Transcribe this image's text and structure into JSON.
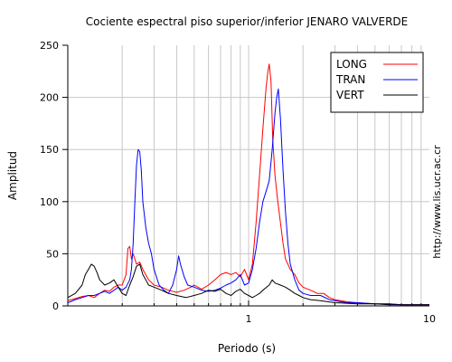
{
  "chart_data": {
    "type": "line",
    "title": "Cociente espectral piso superior/inferior  JENARO VALVERDE",
    "xlabel": "Periodo (s)",
    "ylabel": "Amplitud",
    "credit": "http://www.lis.ucr.ac.cr",
    "x_scale": "log",
    "xlim": [
      0.1,
      10
    ],
    "ylim": [
      0,
      250
    ],
    "grid": true,
    "legend_position": "top-right",
    "x_tick_labels": [
      {
        "value": 1,
        "label": "1"
      },
      {
        "value": 10,
        "label": "10"
      }
    ],
    "y_ticks": [
      0,
      50,
      100,
      150,
      200,
      250
    ],
    "series": [
      {
        "name": "LONG",
        "color": "#ff0000",
        "points": [
          [
            0.1,
            5
          ],
          [
            0.11,
            7
          ],
          [
            0.12,
            9
          ],
          [
            0.13,
            10
          ],
          [
            0.14,
            8
          ],
          [
            0.15,
            12
          ],
          [
            0.16,
            15
          ],
          [
            0.17,
            14
          ],
          [
            0.18,
            18
          ],
          [
            0.19,
            20
          ],
          [
            0.2,
            20
          ],
          [
            0.21,
            30
          ],
          [
            0.215,
            55
          ],
          [
            0.22,
            57
          ],
          [
            0.225,
            45
          ],
          [
            0.23,
            50
          ],
          [
            0.24,
            40
          ],
          [
            0.25,
            42
          ],
          [
            0.26,
            35
          ],
          [
            0.28,
            25
          ],
          [
            0.3,
            20
          ],
          [
            0.33,
            18
          ],
          [
            0.36,
            15
          ],
          [
            0.4,
            13
          ],
          [
            0.44,
            15
          ],
          [
            0.48,
            18
          ],
          [
            0.5,
            20
          ],
          [
            0.55,
            16
          ],
          [
            0.6,
            20
          ],
          [
            0.65,
            25
          ],
          [
            0.7,
            30
          ],
          [
            0.75,
            32
          ],
          [
            0.8,
            30
          ],
          [
            0.85,
            32
          ],
          [
            0.9,
            28
          ],
          [
            0.95,
            35
          ],
          [
            1.0,
            25
          ],
          [
            1.05,
            40
          ],
          [
            1.1,
            80
          ],
          [
            1.15,
            125
          ],
          [
            1.2,
            170
          ],
          [
            1.25,
            210
          ],
          [
            1.28,
            225
          ],
          [
            1.3,
            232
          ],
          [
            1.33,
            215
          ],
          [
            1.36,
            160
          ],
          [
            1.4,
            125
          ],
          [
            1.45,
            100
          ],
          [
            1.5,
            80
          ],
          [
            1.55,
            60
          ],
          [
            1.6,
            45
          ],
          [
            1.7,
            35
          ],
          [
            1.8,
            30
          ],
          [
            1.9,
            22
          ],
          [
            2.0,
            18
          ],
          [
            2.2,
            15
          ],
          [
            2.4,
            12
          ],
          [
            2.6,
            12
          ],
          [
            2.8,
            8
          ],
          [
            3.0,
            6
          ],
          [
            3.5,
            4
          ],
          [
            4.0,
            3
          ],
          [
            5,
            2
          ],
          [
            6,
            2
          ],
          [
            7,
            1
          ],
          [
            8,
            1
          ],
          [
            10,
            1
          ]
        ]
      },
      {
        "name": "TRAN",
        "color": "#0000ff",
        "points": [
          [
            0.1,
            3
          ],
          [
            0.11,
            6
          ],
          [
            0.12,
            8
          ],
          [
            0.13,
            10
          ],
          [
            0.14,
            10
          ],
          [
            0.15,
            12
          ],
          [
            0.16,
            14
          ],
          [
            0.17,
            12
          ],
          [
            0.18,
            15
          ],
          [
            0.19,
            18
          ],
          [
            0.2,
            15
          ],
          [
            0.21,
            18
          ],
          [
            0.22,
            25
          ],
          [
            0.225,
            35
          ],
          [
            0.23,
            60
          ],
          [
            0.235,
            100
          ],
          [
            0.24,
            135
          ],
          [
            0.245,
            150
          ],
          [
            0.25,
            148
          ],
          [
            0.255,
            130
          ],
          [
            0.26,
            100
          ],
          [
            0.27,
            75
          ],
          [
            0.28,
            60
          ],
          [
            0.29,
            50
          ],
          [
            0.3,
            35
          ],
          [
            0.32,
            20
          ],
          [
            0.34,
            15
          ],
          [
            0.36,
            12
          ],
          [
            0.38,
            20
          ],
          [
            0.4,
            35
          ],
          [
            0.41,
            48
          ],
          [
            0.42,
            40
          ],
          [
            0.44,
            28
          ],
          [
            0.46,
            20
          ],
          [
            0.5,
            18
          ],
          [
            0.55,
            15
          ],
          [
            0.6,
            14
          ],
          [
            0.65,
            15
          ],
          [
            0.7,
            17
          ],
          [
            0.75,
            20
          ],
          [
            0.8,
            22
          ],
          [
            0.85,
            25
          ],
          [
            0.9,
            30
          ],
          [
            0.95,
            20
          ],
          [
            1.0,
            22
          ],
          [
            1.05,
            35
          ],
          [
            1.1,
            55
          ],
          [
            1.15,
            80
          ],
          [
            1.2,
            100
          ],
          [
            1.25,
            110
          ],
          [
            1.3,
            120
          ],
          [
            1.35,
            150
          ],
          [
            1.4,
            185
          ],
          [
            1.43,
            200
          ],
          [
            1.46,
            208
          ],
          [
            1.5,
            180
          ],
          [
            1.55,
            130
          ],
          [
            1.6,
            90
          ],
          [
            1.65,
            60
          ],
          [
            1.7,
            40
          ],
          [
            1.8,
            25
          ],
          [
            1.9,
            15
          ],
          [
            2.0,
            12
          ],
          [
            2.2,
            10
          ],
          [
            2.5,
            10
          ],
          [
            2.8,
            6
          ],
          [
            3.0,
            5
          ],
          [
            3.5,
            3
          ],
          [
            4.0,
            3
          ],
          [
            5,
            2
          ],
          [
            6,
            2
          ],
          [
            7,
            1
          ],
          [
            8,
            1
          ],
          [
            10,
            1
          ]
        ]
      },
      {
        "name": "VERT",
        "color": "#000000",
        "points": [
          [
            0.1,
            8
          ],
          [
            0.11,
            12
          ],
          [
            0.12,
            20
          ],
          [
            0.125,
            30
          ],
          [
            0.13,
            35
          ],
          [
            0.135,
            40
          ],
          [
            0.14,
            38
          ],
          [
            0.145,
            32
          ],
          [
            0.15,
            25
          ],
          [
            0.16,
            20
          ],
          [
            0.17,
            22
          ],
          [
            0.18,
            25
          ],
          [
            0.19,
            18
          ],
          [
            0.2,
            12
          ],
          [
            0.21,
            10
          ],
          [
            0.22,
            20
          ],
          [
            0.23,
            28
          ],
          [
            0.24,
            38
          ],
          [
            0.25,
            40
          ],
          [
            0.26,
            30
          ],
          [
            0.27,
            25
          ],
          [
            0.28,
            20
          ],
          [
            0.3,
            18
          ],
          [
            0.33,
            15
          ],
          [
            0.36,
            12
          ],
          [
            0.4,
            10
          ],
          [
            0.45,
            8
          ],
          [
            0.5,
            10
          ],
          [
            0.55,
            12
          ],
          [
            0.6,
            15
          ],
          [
            0.65,
            14
          ],
          [
            0.7,
            16
          ],
          [
            0.75,
            12
          ],
          [
            0.8,
            10
          ],
          [
            0.85,
            14
          ],
          [
            0.9,
            16
          ],
          [
            0.95,
            12
          ],
          [
            1.0,
            10
          ],
          [
            1.05,
            8
          ],
          [
            1.1,
            10
          ],
          [
            1.15,
            12
          ],
          [
            1.2,
            15
          ],
          [
            1.3,
            20
          ],
          [
            1.35,
            25
          ],
          [
            1.4,
            22
          ],
          [
            1.5,
            20
          ],
          [
            1.6,
            18
          ],
          [
            1.7,
            15
          ],
          [
            1.8,
            12
          ],
          [
            1.9,
            10
          ],
          [
            2.0,
            8
          ],
          [
            2.2,
            6
          ],
          [
            2.5,
            5
          ],
          [
            3.0,
            3
          ],
          [
            4,
            2
          ],
          [
            5,
            2
          ],
          [
            6,
            1
          ],
          [
            8,
            1
          ],
          [
            10,
            1
          ]
        ]
      }
    ]
  }
}
